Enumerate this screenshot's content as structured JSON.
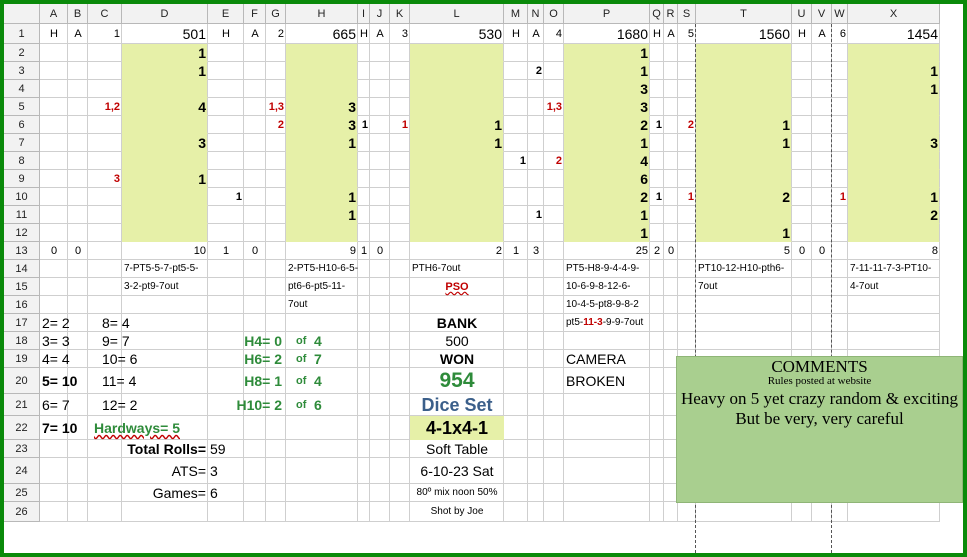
{
  "columns": [
    "A",
    "B",
    "C",
    "D",
    "E",
    "F",
    "G",
    "H",
    "I",
    "J",
    "K",
    "L",
    "M",
    "N",
    "O",
    "P",
    "Q",
    "R",
    "S",
    "T",
    "U",
    "V",
    "W",
    "X"
  ],
  "rows": [
    "1",
    "2",
    "3",
    "4",
    "5",
    "6",
    "7",
    "8",
    "9",
    "10",
    "11",
    "12",
    "13",
    "14",
    "15",
    "16",
    "17",
    "18",
    "19",
    "20",
    "21",
    "22",
    "23",
    "24",
    "25",
    "26"
  ],
  "colors": {
    "frame": "#0a8a0a",
    "highlight": "#e6f0a8",
    "comment_box": "#a9cf8f",
    "red": "#c00000",
    "green": "#2e8b3a",
    "blue": "#3b5f8a",
    "gridline": "#cfcfcf"
  },
  "r1": {
    "A": "H",
    "B": "A",
    "C": "1",
    "D": "501",
    "E": "H",
    "F": "A",
    "G": "2",
    "H": "665",
    "I": "H",
    "J": "A",
    "K": "3",
    "L": "530",
    "M": "H",
    "N": "A",
    "O": "4",
    "P": "1680",
    "Q": "H",
    "R": "A",
    "S": "5",
    "T": "1560",
    "U": "H",
    "V": "A",
    "W": "6",
    "X": "1454"
  },
  "r2": {
    "D": "1",
    "P": "1"
  },
  "r3": {
    "D": "1",
    "N": "2",
    "P": "1",
    "X": "1"
  },
  "r4": {
    "P": "3",
    "X": "1"
  },
  "r5": {
    "C": "1,2",
    "D": "4",
    "G": "1,3",
    "H": "3",
    "O": "1,3",
    "P": "3"
  },
  "r6": {
    "G": "2",
    "H": "3",
    "I": "1",
    "K": "1",
    "L": "1",
    "P": "2",
    "Q": "1",
    "S": "2",
    "T": "1"
  },
  "r7": {
    "D": "3",
    "H": "1",
    "L": "1",
    "P": "1",
    "T": "1",
    "X": "3"
  },
  "r8": {
    "M": "1",
    "O": "2",
    "P": "4"
  },
  "r9": {
    "C": "3",
    "D": "1",
    "P": "6"
  },
  "r10": {
    "E": "1",
    "H": "1",
    "P": "2",
    "Q": "1",
    "S": "1",
    "T": "2",
    "W": "1",
    "X": "1"
  },
  "r11": {
    "H": "1",
    "N": "1",
    "P": "1",
    "X": "2"
  },
  "r12": {
    "P": "1",
    "T": "1"
  },
  "r13": {
    "A": "0",
    "B": "0",
    "D": "10",
    "E": "1",
    "F": "0",
    "H": "9",
    "I": "1",
    "J": "0",
    "L": "2",
    "M": "1",
    "N": "3",
    "P": "25",
    "Q": "2",
    "R": "0",
    "T": "5",
    "U": "0",
    "V": "0",
    "X": "8"
  },
  "notes": {
    "d14": "7-PT5-5-7-pt5-5-",
    "d15": "3-2-pt9-7out",
    "h14": "2-PT5-H10-6-5-",
    "h15": "pt6-6-pt5-11-",
    "h16": "7out",
    "l14": "PTH6-7out",
    "l15": "PSO",
    "p14": "PT5-H8-9-4-4-9-",
    "p15": "10-6-9-8-12-6-",
    "p16": "10-4-5-pt8-9-8-2",
    "p17a": "pt5-",
    "p17b": "11-3",
    "p17c": "-9-9-7out",
    "t14": "PT10-12-H10-pth6-",
    "t15": "7out",
    "x14": "7-11-11-7-3-PT10-",
    "x15": "4-7out"
  },
  "stats": {
    "a17": "2= 2",
    "c17": "8= 4",
    "a18": "3= 3",
    "c18": "9= 7",
    "a19": "4= 4",
    "c19": "10= 6",
    "a20": "5= 10",
    "c20": "11= 4",
    "a21": "6= 7",
    "c21": "12= 2",
    "a22": "7= 10",
    "hardways": "Hardways= 5",
    "total_rolls_label": "Total Rolls=",
    "total_rolls": "59",
    "ats_label": "ATS=",
    "ats": "3",
    "games_label": "Games=",
    "games": "6",
    "h4": "H4= 0",
    "h6": "H6= 2",
    "h8": "H8= 1",
    "h10": "H10= 2",
    "of4a": "of",
    "of4a_v": "4",
    "of7": "of",
    "of7_v": "7",
    "of4b": "of",
    "of4b_v": "4",
    "of6": "of",
    "of6_v": "6"
  },
  "center": {
    "bank_label": "BANK",
    "bank": "500",
    "won_label": "WON",
    "won": "954",
    "dice_set_label": "Dice Set",
    "dice_set": "4-1x4-1",
    "table": "Soft Table",
    "date": "6-10-23 Sat",
    "weather": "80º mix noon 50%",
    "shot_by": "Shot by Joe"
  },
  "camera": {
    "l1": "CAMERA",
    "l2": "BROKEN"
  },
  "comments": {
    "title": "COMMENTS",
    "subtitle": "Rules posted at website",
    "line1": "Heavy on 5 yet crazy random & exciting",
    "line2": "But be very, very careful"
  }
}
